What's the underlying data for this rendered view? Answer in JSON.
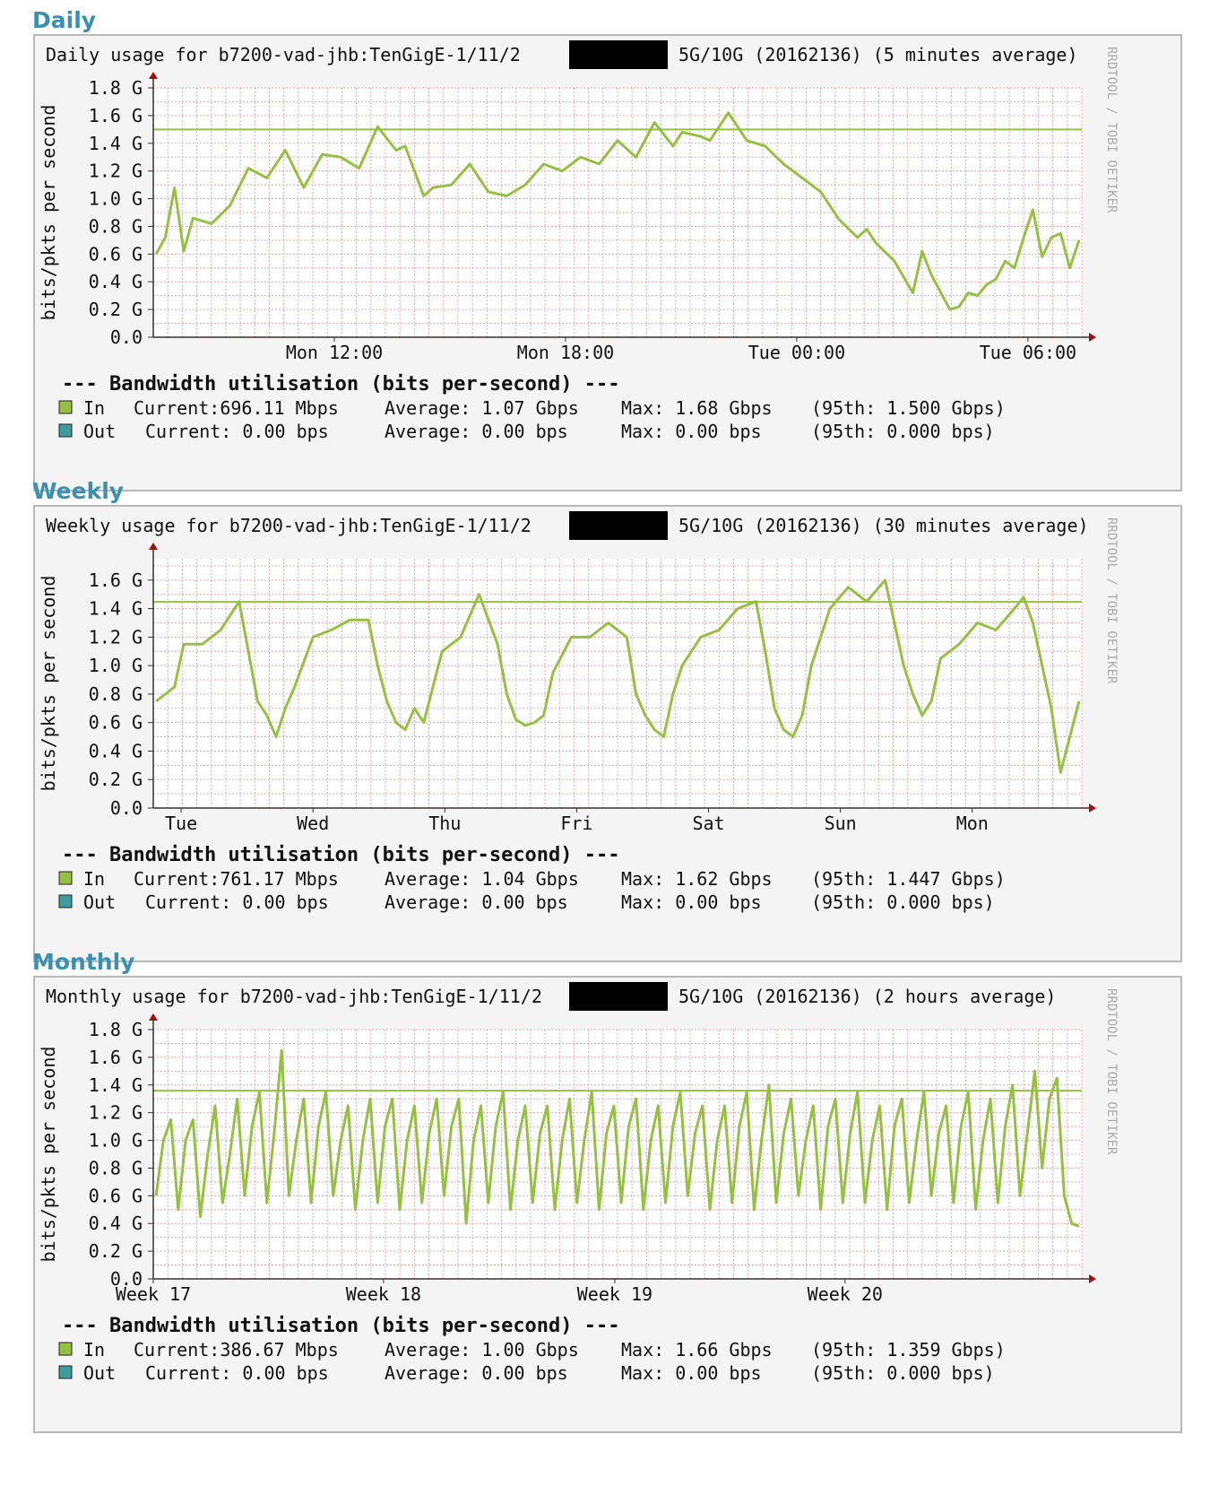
{
  "colors": {
    "in": "#94c143",
    "out": "#3f9c9c",
    "grid": "#e8a8a8",
    "axis": "#a01010",
    "background": "#ffffff"
  },
  "panels": [
    {
      "heading": "Daily",
      "title_prefix": "Daily usage for b7200-vad-jhb:TenGigE-1/11/2",
      "title_suffix": "5G/10G (20162136) (5 minutes average)",
      "ylabel": "bits/pkts per second",
      "watermark": "RRDTOOL / TOBI OETIKER",
      "legend_header": "--- Bandwidth utilisation (bits per-second) ---",
      "legend": [
        {
          "name": "In",
          "current": "Current:696.11 Mbps",
          "average": "Average: 1.07 Gbps",
          "max": "Max: 1.68 Gbps",
          "p95": "(95th: 1.500 Gbps)"
        },
        {
          "name": "Out",
          "current": "Current: 0.00  bps",
          "average": "Average: 0.00  bps",
          "max": "Max: 0.00  bps",
          "p95": "(95th: 0.000  bps)"
        }
      ],
      "chart_data": {
        "type": "line",
        "yticks": [
          "0.0",
          "0.2 G",
          "0.4 G",
          "0.6 G",
          "0.8 G",
          "1.0 G",
          "1.2 G",
          "1.4 G",
          "1.6 G",
          "1.8 G"
        ],
        "ylim": [
          0,
          1.8
        ],
        "xticks": [
          {
            "label": "Mon 12:00",
            "t": 0.195
          },
          {
            "label": "Mon 18:00",
            "t": 0.444
          },
          {
            "label": "Tue 00:00",
            "t": 0.693
          },
          {
            "label": "Tue 06:00",
            "t": 0.942
          }
        ],
        "percentile_95": 1.5,
        "series": [
          {
            "name": "In",
            "x": [
              0,
              0.01,
              0.02,
              0.03,
              0.04,
              0.06,
              0.08,
              0.1,
              0.12,
              0.14,
              0.16,
              0.18,
              0.2,
              0.22,
              0.24,
              0.26,
              0.27,
              0.29,
              0.3,
              0.32,
              0.34,
              0.36,
              0.38,
              0.4,
              0.42,
              0.44,
              0.46,
              0.48,
              0.5,
              0.52,
              0.54,
              0.56,
              0.57,
              0.59,
              0.6,
              0.62,
              0.64,
              0.66,
              0.68,
              0.7,
              0.72,
              0.74,
              0.76,
              0.77,
              0.78,
              0.8,
              0.82,
              0.83,
              0.84,
              0.86,
              0.87,
              0.88,
              0.89,
              0.9,
              0.91,
              0.92,
              0.93,
              0.94,
              0.95,
              0.96,
              0.97,
              0.98,
              0.99,
              1.0
            ],
            "values": [
              0.6,
              0.72,
              1.08,
              0.62,
              0.86,
              0.82,
              0.95,
              1.22,
              1.15,
              1.35,
              1.08,
              1.32,
              1.3,
              1.22,
              1.52,
              1.35,
              1.38,
              1.02,
              1.08,
              1.1,
              1.25,
              1.05,
              1.02,
              1.1,
              1.25,
              1.2,
              1.3,
              1.25,
              1.42,
              1.3,
              1.55,
              1.38,
              1.48,
              1.45,
              1.42,
              1.62,
              1.42,
              1.38,
              1.25,
              1.15,
              1.05,
              0.85,
              0.72,
              0.78,
              0.68,
              0.55,
              0.32,
              0.62,
              0.45,
              0.2,
              0.22,
              0.32,
              0.3,
              0.38,
              0.42,
              0.55,
              0.5,
              0.72,
              0.92,
              0.58,
              0.72,
              0.75,
              0.5,
              0.7
            ]
          }
        ]
      }
    },
    {
      "heading": "Weekly",
      "title_prefix": "Weekly usage for b7200-vad-jhb:TenGigE-1/11/2",
      "title_suffix": "5G/10G (20162136) (30 minutes average)",
      "ylabel": "bits/pkts per second",
      "watermark": "RRDTOOL / TOBI OETIKER",
      "legend_header": "--- Bandwidth utilisation (bits per-second) ---",
      "legend": [
        {
          "name": "In",
          "current": "Current:761.17 Mbps",
          "average": "Average: 1.04 Gbps",
          "max": "Max: 1.62 Gbps",
          "p95": "(95th: 1.447 Gbps)"
        },
        {
          "name": "Out",
          "current": "Current: 0.00  bps",
          "average": "Average: 0.00  bps",
          "max": "Max: 0.00  bps",
          "p95": "(95th: 0.000  bps)"
        }
      ],
      "chart_data": {
        "type": "line",
        "yticks": [
          "0.0",
          "0.2 G",
          "0.4 G",
          "0.6 G",
          "0.8 G",
          "1.0 G",
          "1.2 G",
          "1.4 G",
          "1.6 G"
        ],
        "ylim": [
          0,
          1.75
        ],
        "xticks": [
          {
            "label": "Tue",
            "t": 0.03
          },
          {
            "label": "Wed",
            "t": 0.172
          },
          {
            "label": "Thu",
            "t": 0.314
          },
          {
            "label": "Fri",
            "t": 0.456
          },
          {
            "label": "Sat",
            "t": 0.598
          },
          {
            "label": "Sun",
            "t": 0.74
          },
          {
            "label": "Mon",
            "t": 0.882
          }
        ],
        "percentile_95": 1.447,
        "series": [
          {
            "name": "In",
            "x": [
              0,
              0.01,
              0.02,
              0.03,
              0.05,
              0.07,
              0.09,
              0.1,
              0.11,
              0.12,
              0.13,
              0.14,
              0.15,
              0.17,
              0.19,
              0.21,
              0.23,
              0.24,
              0.25,
              0.26,
              0.27,
              0.28,
              0.29,
              0.31,
              0.33,
              0.35,
              0.37,
              0.38,
              0.39,
              0.4,
              0.41,
              0.42,
              0.43,
              0.45,
              0.47,
              0.49,
              0.51,
              0.52,
              0.53,
              0.54,
              0.55,
              0.56,
              0.57,
              0.59,
              0.61,
              0.63,
              0.65,
              0.66,
              0.67,
              0.68,
              0.69,
              0.7,
              0.71,
              0.73,
              0.75,
              0.77,
              0.79,
              0.8,
              0.81,
              0.82,
              0.83,
              0.84,
              0.85,
              0.87,
              0.89,
              0.91,
              0.93,
              0.94,
              0.95,
              0.96,
              0.97,
              0.98,
              0.99,
              1.0
            ],
            "values": [
              0.75,
              0.8,
              0.85,
              1.15,
              1.15,
              1.25,
              1.45,
              1.1,
              0.75,
              0.65,
              0.5,
              0.7,
              0.85,
              1.2,
              1.25,
              1.32,
              1.32,
              1.0,
              0.75,
              0.6,
              0.55,
              0.7,
              0.6,
              1.1,
              1.2,
              1.5,
              1.15,
              0.8,
              0.62,
              0.58,
              0.6,
              0.65,
              0.95,
              1.2,
              1.2,
              1.3,
              1.2,
              0.8,
              0.65,
              0.55,
              0.5,
              0.8,
              1.0,
              1.2,
              1.25,
              1.4,
              1.45,
              1.1,
              0.7,
              0.55,
              0.5,
              0.65,
              1.0,
              1.4,
              1.55,
              1.45,
              1.6,
              1.3,
              1.0,
              0.8,
              0.65,
              0.75,
              1.05,
              1.15,
              1.3,
              1.25,
              1.4,
              1.48,
              1.3,
              1.0,
              0.7,
              0.25,
              0.5,
              0.75
            ]
          }
        ]
      }
    },
    {
      "heading": "Monthly",
      "title_prefix": "Monthly usage for b7200-vad-jhb:TenGigE-1/11/2",
      "title_suffix": "5G/10G (20162136) (2 hours average)",
      "ylabel": "bits/pkts per second",
      "watermark": "RRDTOOL / TOBI OETIKER",
      "legend_header": "--- Bandwidth utilisation (bits per-second) ---",
      "legend": [
        {
          "name": "In",
          "current": "Current:386.67 Mbps",
          "average": "Average: 1.00 Gbps",
          "max": "Max: 1.66 Gbps",
          "p95": "(95th: 1.359 Gbps)"
        },
        {
          "name": "Out",
          "current": "Current: 0.00  bps",
          "average": "Average: 0.00  bps",
          "max": "Max: 0.00  bps",
          "p95": "(95th: 0.000  bps)"
        }
      ],
      "chart_data": {
        "type": "line",
        "yticks": [
          "0.0",
          "0.2 G",
          "0.4 G",
          "0.6 G",
          "0.8 G",
          "1.0 G",
          "1.2 G",
          "1.4 G",
          "1.6 G",
          "1.8 G"
        ],
        "ylim": [
          0,
          1.8
        ],
        "xticks": [
          {
            "label": "Week 17",
            "t": 0.0
          },
          {
            "label": "Week 18",
            "t": 0.248
          },
          {
            "label": "Week 19",
            "t": 0.497
          },
          {
            "label": "Week 20",
            "t": 0.745
          }
        ],
        "percentile_95": 1.359,
        "series": [
          {
            "name": "In",
            "x": [
              0,
              0.008,
              0.016,
              0.024,
              0.032,
              0.04,
              0.048,
              0.056,
              0.064,
              0.072,
              0.08,
              0.088,
              0.096,
              0.104,
              0.112,
              0.12,
              0.128,
              0.136,
              0.144,
              0.152,
              0.16,
              0.168,
              0.176,
              0.184,
              0.192,
              0.2,
              0.208,
              0.216,
              0.224,
              0.232,
              0.24,
              0.248,
              0.256,
              0.264,
              0.272,
              0.28,
              0.288,
              0.296,
              0.304,
              0.312,
              0.32,
              0.328,
              0.336,
              0.344,
              0.352,
              0.36,
              0.368,
              0.376,
              0.384,
              0.392,
              0.4,
              0.408,
              0.416,
              0.424,
              0.432,
              0.44,
              0.448,
              0.456,
              0.464,
              0.472,
              0.48,
              0.488,
              0.496,
              0.504,
              0.512,
              0.52,
              0.528,
              0.536,
              0.544,
              0.552,
              0.56,
              0.568,
              0.576,
              0.584,
              0.592,
              0.6,
              0.608,
              0.616,
              0.624,
              0.632,
              0.64,
              0.648,
              0.656,
              0.664,
              0.672,
              0.68,
              0.688,
              0.696,
              0.704,
              0.712,
              0.72,
              0.728,
              0.736,
              0.744,
              0.752,
              0.76,
              0.768,
              0.776,
              0.784,
              0.792,
              0.8,
              0.808,
              0.816,
              0.824,
              0.832,
              0.84,
              0.848,
              0.856,
              0.864,
              0.872,
              0.88,
              0.888,
              0.896,
              0.904,
              0.912,
              0.92,
              0.928,
              0.936,
              0.944,
              0.952,
              0.96,
              0.968,
              0.976,
              0.984,
              0.992,
              1.0
            ],
            "values": [
              0.6,
              1.0,
              1.15,
              0.5,
              1.0,
              1.15,
              0.45,
              0.9,
              1.25,
              0.55,
              0.9,
              1.3,
              0.6,
              1.1,
              1.35,
              0.55,
              1.05,
              1.65,
              0.6,
              1.0,
              1.3,
              0.55,
              1.1,
              1.35,
              0.6,
              1.0,
              1.25,
              0.5,
              1.0,
              1.3,
              0.55,
              1.1,
              1.3,
              0.5,
              1.0,
              1.25,
              0.55,
              1.05,
              1.3,
              0.6,
              1.1,
              1.3,
              0.4,
              1.0,
              1.25,
              0.55,
              1.1,
              1.35,
              0.5,
              1.0,
              1.25,
              0.55,
              1.05,
              1.25,
              0.5,
              1.0,
              1.3,
              0.55,
              1.0,
              1.35,
              0.5,
              1.05,
              1.25,
              0.55,
              1.1,
              1.3,
              0.5,
              1.0,
              1.25,
              0.55,
              1.1,
              1.35,
              0.6,
              1.05,
              1.25,
              0.5,
              1.0,
              1.25,
              0.55,
              1.1,
              1.35,
              0.5,
              1.0,
              1.4,
              0.55,
              1.05,
              1.3,
              0.6,
              1.0,
              1.25,
              0.5,
              1.1,
              1.3,
              0.55,
              1.05,
              1.35,
              0.55,
              1.0,
              1.25,
              0.5,
              1.1,
              1.3,
              0.55,
              1.0,
              1.35,
              0.6,
              1.05,
              1.25,
              0.55,
              1.1,
              1.35,
              0.5,
              1.0,
              1.3,
              0.55,
              1.1,
              1.4,
              0.6,
              1.05,
              1.5,
              0.8,
              1.3,
              1.45,
              0.6,
              0.4,
              0.38
            ]
          }
        ]
      }
    }
  ]
}
